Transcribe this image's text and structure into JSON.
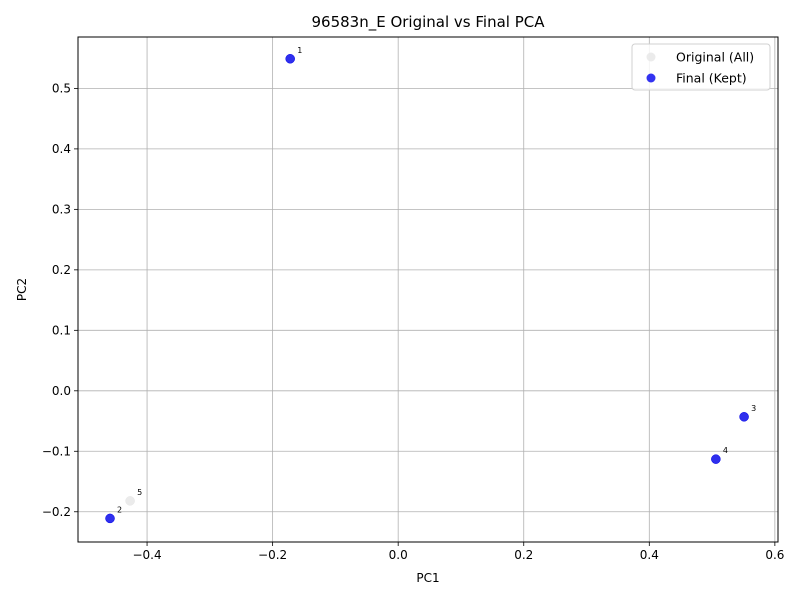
{
  "chart_data": {
    "type": "scatter",
    "title": "96583n_E Original vs Final PCA",
    "xlabel": "PC1",
    "ylabel": "PC2",
    "xlim": [
      -0.51,
      0.605
    ],
    "ylim": [
      -0.25,
      0.585
    ],
    "xticks": [
      -0.4,
      -0.2,
      0.0,
      0.2,
      0.4,
      0.6
    ],
    "xtick_labels": [
      "−0.4",
      "−0.2",
      "0.0",
      "0.2",
      "0.4",
      "0.6"
    ],
    "yticks": [
      -0.2,
      -0.1,
      0.0,
      0.1,
      0.2,
      0.3,
      0.4,
      0.5
    ],
    "ytick_labels": [
      "−0.2",
      "−0.1",
      "0.0",
      "0.1",
      "0.2",
      "0.3",
      "0.4",
      "0.5"
    ],
    "grid": true,
    "legend_position": "top-right",
    "series": [
      {
        "name": "Original (All)",
        "color": "#e6e6e6",
        "points": [
          {
            "label": "1",
            "x": -0.172,
            "y": 0.549
          },
          {
            "label": "2",
            "x": -0.459,
            "y": -0.211
          },
          {
            "label": "3",
            "x": 0.551,
            "y": -0.043
          },
          {
            "label": "4",
            "x": 0.506,
            "y": -0.113
          },
          {
            "label": "5",
            "x": -0.427,
            "y": -0.182
          }
        ]
      },
      {
        "name": "Final (Kept)",
        "color": "#0000ee",
        "points": [
          {
            "label": "1",
            "x": -0.172,
            "y": 0.549
          },
          {
            "label": "2",
            "x": -0.459,
            "y": -0.211
          },
          {
            "label": "3",
            "x": 0.551,
            "y": -0.043
          },
          {
            "label": "4",
            "x": 0.506,
            "y": -0.113
          }
        ]
      }
    ]
  }
}
